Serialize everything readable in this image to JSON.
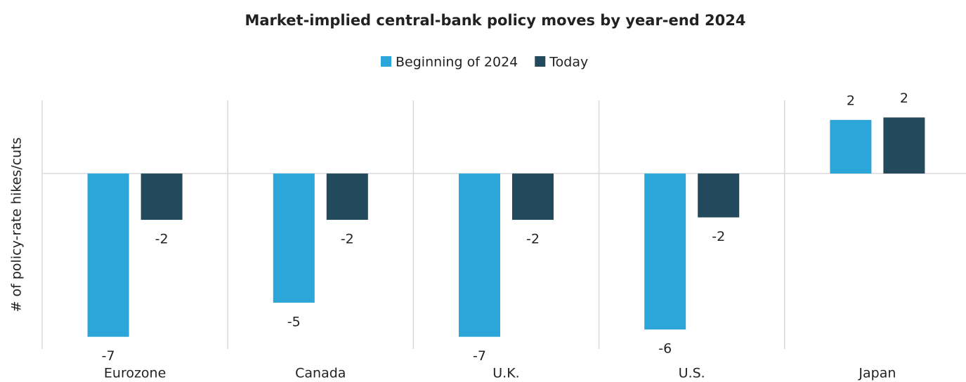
{
  "chart_data": {
    "type": "bar",
    "title": "Market-implied central-bank policy moves by year-end 2024",
    "y_label": "# of policy-rate hikes/cuts",
    "categories": [
      "Eurozone",
      "Canada",
      "U.K.",
      "U.S.",
      "Japan"
    ],
    "series": [
      {
        "name": "Beginning of 2024",
        "color": "#2ca6d8",
        "values": [
          -6.7,
          -5.3,
          -6.7,
          -6.4,
          2.2
        ],
        "value_labels": [
          "-7",
          "-5",
          "-7",
          "-6",
          "2"
        ]
      },
      {
        "name": "Today",
        "color": "#23495c",
        "values": [
          -1.9,
          -1.9,
          -1.9,
          -1.8,
          2.3
        ],
        "value_labels": [
          "-2",
          "-2",
          "-2",
          "-2",
          "2"
        ]
      }
    ],
    "ylim": [
      -7.2,
      3
    ],
    "legend": "top",
    "grid": true
  }
}
